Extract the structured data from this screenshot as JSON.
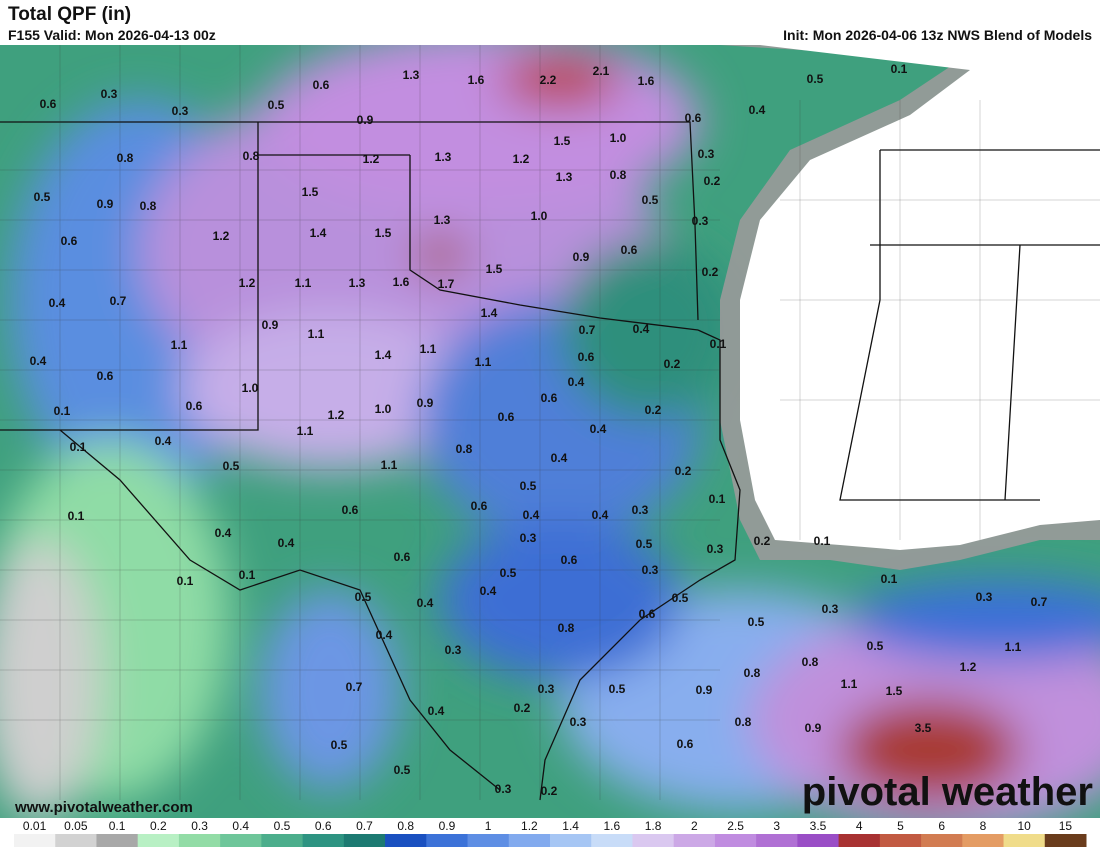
{
  "header": {
    "title": "Total QPF (in)",
    "valid": "F155 Valid: Mon 2026-04-13 00z",
    "init": "Init: Mon 2026-04-06 13z NWS Blend of Models"
  },
  "footer": {
    "website": "www.pivotalweather.com",
    "logo": "pivotal weather"
  },
  "map": {
    "labels": [
      "0.3",
      "0.6",
      "0.3",
      "0.5",
      "0.6",
      "1.3",
      "1.6",
      "2.2",
      "2.1",
      "1.6",
      "0.5",
      "0.1",
      "0.9",
      "0.4",
      "0.6",
      "0.8",
      "0.8",
      "1.2",
      "1.3",
      "1.2",
      "1.5",
      "1.0",
      "0.3",
      "0.5",
      "0.9",
      "0.8",
      "1.5",
      "1.3",
      "0.8",
      "0.2",
      "0.5",
      "0.6",
      "1.2",
      "1.4",
      "1.5",
      "1.3",
      "1.0",
      "0.3",
      "0.4",
      "0.7",
      "1.2",
      "1.1",
      "1.3",
      "1.6",
      "1.7",
      "1.5",
      "0.9",
      "0.6",
      "0.2",
      "0.9",
      "1.1",
      "1.4",
      "0.7",
      "0.4",
      "0.1",
      "0.4",
      "1.1",
      "1.4",
      "1.1",
      "1.1",
      "0.6",
      "0.2",
      "0.6",
      "0.4",
      "0.1",
      "1.0",
      "0.6",
      "1.2",
      "1.0",
      "0.9",
      "0.6",
      "0.2",
      "0.6",
      "0.4",
      "0.4",
      "1.1",
      "0.1",
      "0.8",
      "0.4",
      "0.5",
      "1.1",
      "0.2",
      "0.5",
      "0.1",
      "0.1",
      "0.6",
      "0.6",
      "0.4",
      "0.4",
      "0.3",
      "0.4",
      "0.4",
      "0.3",
      "0.5",
      "0.3",
      "0.2",
      "0.1",
      "0.6",
      "0.6",
      "0.5",
      "0.3",
      "0.1",
      "0.1",
      "0.1",
      "0.5",
      "0.4",
      "0.4",
      "0.5",
      "0.3",
      "0.7",
      "0.6",
      "0.3",
      "0.8",
      "0.5",
      "0.4",
      "0.3",
      "0.5",
      "1.1",
      "0.8",
      "1.2",
      "0.8",
      "0.7",
      "0.3",
      "0.5",
      "0.9",
      "1.1",
      "1.5",
      "0.2",
      "0.4",
      "0.3",
      "0.8",
      "0.9",
      "3.5",
      "0.5",
      "0.6",
      "0.5",
      "0.3",
      "0.2"
    ]
  },
  "legend": {
    "ticks": [
      0.01,
      0.05,
      0.1,
      0.2,
      0.3,
      0.4,
      0.5,
      0.6,
      0.7,
      0.8,
      0.9,
      1,
      1.2,
      1.4,
      1.6,
      1.8,
      2,
      2.5,
      3,
      3.5,
      4,
      5,
      6,
      8,
      10,
      15
    ],
    "colors": [
      "#f2f2f2",
      "#d2d2d2",
      "#a8a8a8",
      "#b8f0c4",
      "#92dca6",
      "#6ec69a",
      "#4cae8c",
      "#2e9482",
      "#1d7a72",
      "#1a50c0",
      "#3c72d8",
      "#5e8ee4",
      "#82aaee",
      "#a6c6f4",
      "#c8dcf8",
      "#dac8f0",
      "#cca8e6",
      "#c08ce0",
      "#b070d4",
      "#9a4ec6",
      "#a83232",
      "#c25a42",
      "#d27c52",
      "#e49c64",
      "#f0dc8a",
      "#6a3c1c"
    ]
  }
}
